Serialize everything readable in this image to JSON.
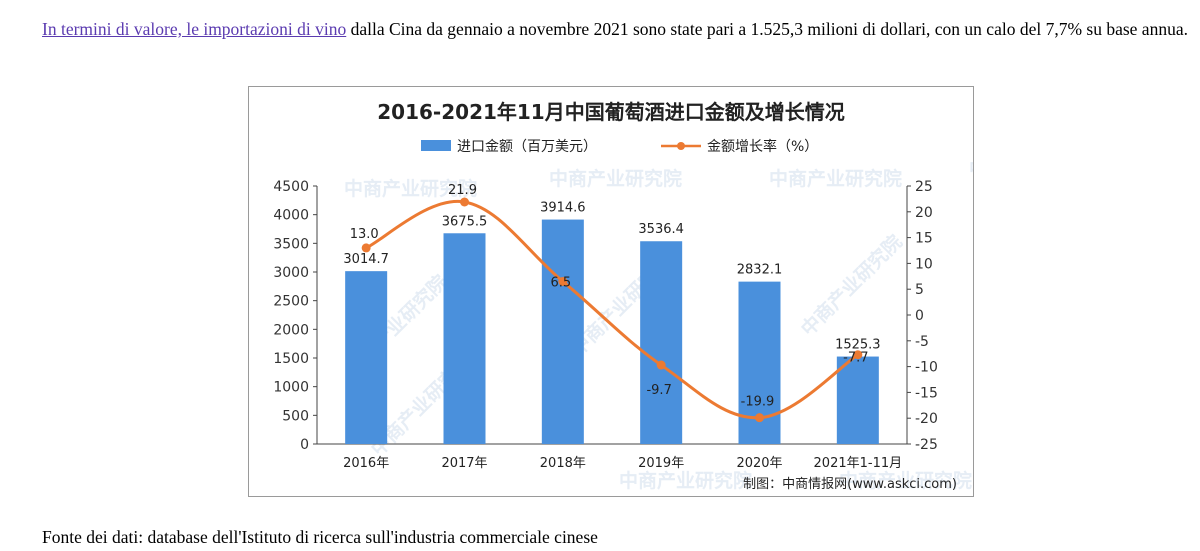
{
  "article": {
    "link_text": "In termini di valore, le importazioni di vino",
    "text_rest": " dalla Cina da gennaio a novembre 2021 sono state pari a 1.525,3 milioni di dollari, con un calo del 7,7% su base annua.",
    "source": "Fonte dei dati: database dell'Istituto di ricerca sull'industria commerciale cinese"
  },
  "chart_data": {
    "type": "bar",
    "title": "2016-2021年11月中国葡萄酒进口金额及增长情况",
    "categories": [
      "2016年",
      "2017年",
      "2018年",
      "2019年",
      "2020年",
      "2021年1-11月"
    ],
    "series": [
      {
        "name": "进口金额（百万美元）",
        "type": "bar",
        "axis": "left",
        "values": [
          3014.7,
          3675.5,
          3914.6,
          3536.4,
          2832.1,
          1525.3
        ],
        "labels": [
          "3014.7",
          "3675.5",
          "3914.6",
          "3536.4",
          "2832.1",
          "1525.3"
        ]
      },
      {
        "name": "金额增长率（%）",
        "type": "line",
        "axis": "right",
        "values": [
          13.0,
          21.9,
          6.5,
          -9.7,
          -19.9,
          -7.7
        ],
        "labels": [
          "13.0",
          "21.9",
          "6.5",
          "-9.7",
          "-19.9",
          "-7.7"
        ]
      }
    ],
    "left_axis": {
      "min": 0,
      "max": 4500,
      "step": 500
    },
    "right_axis": {
      "min": -25,
      "max": 25,
      "step": 5
    },
    "legend_position": "top-center",
    "credit": "制图：中商情报网(www.askci.com)",
    "watermark": "中商产业研究院",
    "colors": {
      "bar": "#4a90dc",
      "line": "#ec7a32",
      "marker": "#ec7a32",
      "axis": "#444444"
    }
  }
}
